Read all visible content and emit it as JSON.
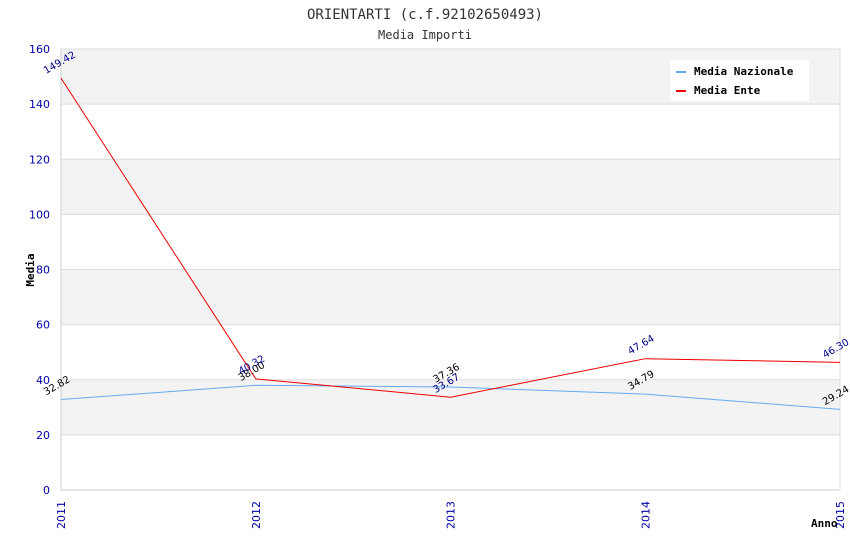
{
  "chart_data": {
    "type": "line",
    "title": "ORIENTARTI (c.f.92102650493)",
    "subtitle": "Media Importi",
    "xlabel": "Anno",
    "ylabel": "Media",
    "categories": [
      "2011",
      "2012",
      "2013",
      "2014",
      "2015"
    ],
    "ylim": [
      0,
      160
    ],
    "yticks": [
      "0",
      "20",
      "40",
      "60",
      "80",
      "100",
      "120",
      "140",
      "160"
    ],
    "grid": true,
    "legend_position": "top-right",
    "series": [
      {
        "name": "Media Nazionale",
        "color": "#66aaee",
        "label_color": "#000000",
        "values": [
          32.82,
          38.0,
          37.36,
          34.79,
          29.24
        ],
        "labels": [
          "32.82",
          "38.00",
          "37.36",
          "34.79",
          "29.24"
        ]
      },
      {
        "name": "Media Ente",
        "color": "#ee0000",
        "label_color": "#000088",
        "values": [
          149.42,
          40.32,
          33.67,
          47.64,
          46.3
        ],
        "labels": [
          "149.42",
          "40.32",
          "33.67",
          "47.64",
          "46.30"
        ]
      }
    ]
  }
}
